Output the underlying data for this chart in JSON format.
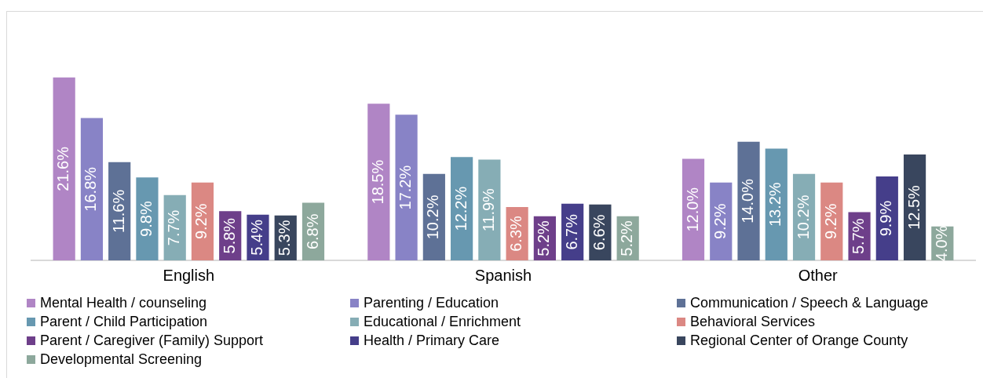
{
  "chart_data": {
    "type": "bar",
    "categories": [
      "English",
      "Spanish",
      "Other"
    ],
    "legend": "bottom",
    "grid": false,
    "series": [
      {
        "name": "Mental Health / counseling",
        "color": "#b085c5",
        "values": [
          21.6,
          18.5,
          12.0
        ],
        "value_labels": [
          "21.6%",
          "18.5%",
          "12.0%"
        ]
      },
      {
        "name": "Parenting / Education",
        "color": "#8883c6",
        "values": [
          16.8,
          17.2,
          9.2
        ],
        "value_labels": [
          "16.8%",
          "17.2%",
          "9.2%"
        ]
      },
      {
        "name": "Communication / Speech & Language",
        "color": "#5e7196",
        "values": [
          11.6,
          10.2,
          14.0
        ],
        "value_labels": [
          "11.6%",
          "10.2%",
          "14.0%"
        ]
      },
      {
        "name": "Parent / Child Participation",
        "color": "#6798b0",
        "values": [
          9.8,
          12.2,
          13.2
        ],
        "value_labels": [
          "9.8%",
          "12.2%",
          "13.2%"
        ]
      },
      {
        "name": "Educational / Enrichment",
        "color": "#86adb5",
        "values": [
          7.7,
          11.9,
          10.2
        ],
        "value_labels": [
          "7.7%",
          "11.9%",
          "10.2%"
        ]
      },
      {
        "name": "Behavioral Services",
        "color": "#db8883",
        "values": [
          9.2,
          6.3,
          9.2
        ],
        "value_labels": [
          "9.2%",
          "6.3%",
          "9.2%"
        ]
      },
      {
        "name": "Parent / Caregiver (Family) Support",
        "color": "#6e3f8a",
        "values": [
          5.8,
          5.2,
          5.7
        ],
        "value_labels": [
          "5.8%",
          "5.2%",
          "5.7%"
        ]
      },
      {
        "name": "Health / Primary Care",
        "color": "#453e8a",
        "values": [
          5.4,
          6.7,
          9.9
        ],
        "value_labels": [
          "5.4%",
          "6.7%",
          "9.9%"
        ]
      },
      {
        "name": "Regional Center of Orange County",
        "color": "#39465e",
        "values": [
          5.3,
          6.6,
          12.5
        ],
        "value_labels": [
          "5.3%",
          "6.6%",
          "12.5%"
        ]
      },
      {
        "name": "Developmental Screening",
        "color": "#8da89c",
        "values": [
          6.8,
          5.2,
          4.0
        ],
        "value_labels": [
          "6.8%",
          "5.2%",
          "4.0%"
        ]
      }
    ]
  }
}
